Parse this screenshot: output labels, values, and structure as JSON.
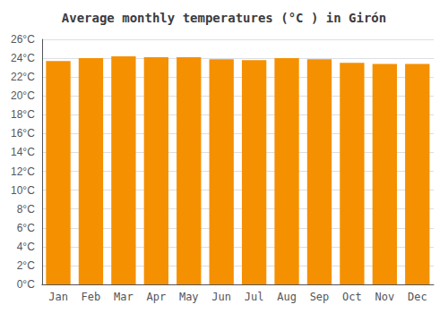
{
  "chart_data": {
    "type": "bar",
    "title": "Average monthly temperatures (°C ) in Girón",
    "categories": [
      "Jan",
      "Feb",
      "Mar",
      "Apr",
      "May",
      "Jun",
      "Jul",
      "Aug",
      "Sep",
      "Oct",
      "Nov",
      "Dec"
    ],
    "values": [
      23.7,
      24.0,
      24.2,
      24.1,
      24.1,
      23.9,
      23.8,
      24.0,
      23.9,
      23.5,
      23.4,
      23.4
    ],
    "color": "#F59000",
    "ylim": [
      0,
      26
    ],
    "yticks": [
      {
        "value": 0,
        "label": "0°C"
      },
      {
        "value": 2,
        "label": "2°C"
      },
      {
        "value": 4,
        "label": "4°C"
      },
      {
        "value": 6,
        "label": "6°C"
      },
      {
        "value": 8,
        "label": "8°C"
      },
      {
        "value": 10,
        "label": "10°C"
      },
      {
        "value": 12,
        "label": "12°C"
      },
      {
        "value": 14,
        "label": "14°C"
      },
      {
        "value": 16,
        "label": "16°C"
      },
      {
        "value": 18,
        "label": "18°C"
      },
      {
        "value": 20,
        "label": "20°C"
      },
      {
        "value": 22,
        "label": "22°C"
      },
      {
        "value": 24,
        "label": "24°C"
      },
      {
        "value": 26,
        "label": "26°C"
      }
    ],
    "grid": true
  }
}
